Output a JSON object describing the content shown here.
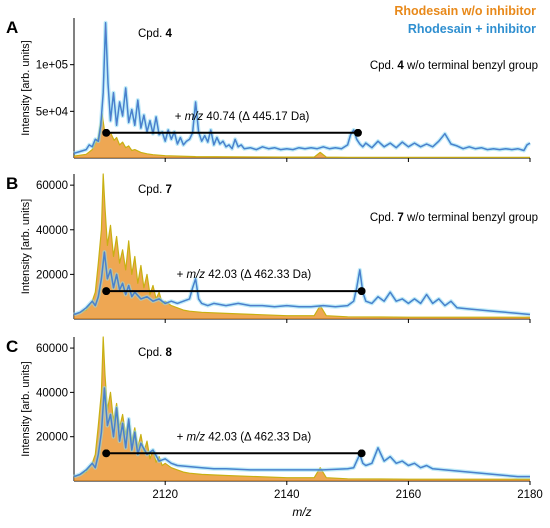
{
  "legend": [
    {
      "name": "Rhodesain w/o inhibitor",
      "color": "#e8891a"
    },
    {
      "name": "Rhodesain + inhibitor",
      "color": "#2f8fd0"
    }
  ],
  "axis": {
    "xlabel": "m/z",
    "ylabel": "Intensity [arb. units]",
    "xlim": [
      2105,
      2180
    ],
    "xticks": [
      2120,
      2140,
      2160,
      2180
    ]
  },
  "chart_data": [
    {
      "type": "line",
      "panel": "A",
      "compound_prefix": "Cpd.",
      "compound": "4",
      "note_prefix": "Cpd.",
      "note_compound": "4",
      "note_suffix": "w/o terminal benzyl group",
      "annotation_prefix": "+",
      "annotation_mz": "m/z",
      "annotation_value": "40.74 (Δ 445.17 Da)",
      "arrow_x": [
        2110.3,
        2151.7
      ],
      "arrow_y": 27000,
      "ylim": [
        0,
        150000
      ],
      "yticks": [
        50000,
        100000
      ],
      "ytick_labels": [
        "5e+04",
        "1e+05"
      ],
      "series": [
        {
          "name": "Rhodesain w/o inhibitor",
          "color": "#e8891a",
          "x": [
            2105,
            2107,
            2108,
            2109,
            2109.6,
            2110,
            2110.5,
            2111,
            2111.6,
            2112,
            2112.5,
            2113,
            2113.5,
            2114,
            2114.5,
            2115,
            2116,
            2117,
            2118,
            2120,
            2125,
            2140,
            2144.5,
            2145.5,
            2146.5,
            2150,
            2180
          ],
          "y": [
            2000,
            4000,
            9000,
            22000,
            48000,
            30000,
            24000,
            27000,
            19000,
            22000,
            14000,
            17000,
            11000,
            13000,
            8000,
            9000,
            6000,
            4500,
            3500,
            2500,
            1500,
            1000,
            1000,
            6000,
            1000,
            800,
            800
          ]
        },
        {
          "name": "Rhodesain + inhibitor",
          "color": "#2f8fd0",
          "x": [
            2105,
            2106,
            2107,
            2107.5,
            2108,
            2108.5,
            2109,
            2109.4,
            2109.8,
            2110.2,
            2110.6,
            2111,
            2111.5,
            2112,
            2112.5,
            2113,
            2113.5,
            2114,
            2114.5,
            2115,
            2115.5,
            2116,
            2116.5,
            2117,
            2117.5,
            2118,
            2118.5,
            2119,
            2119.5,
            2120,
            2120.5,
            2121,
            2121.5,
            2122,
            2122.5,
            2123,
            2123.5,
            2124,
            2124.5,
            2125,
            2125.5,
            2126,
            2126.5,
            2127,
            2127.5,
            2128,
            2128.5,
            2129,
            2129.5,
            2130,
            2130.5,
            2131,
            2131.5,
            2132,
            2132.5,
            2133,
            2134,
            2135,
            2136,
            2137,
            2138,
            2139,
            2140,
            2141,
            2142,
            2143,
            2144,
            2145,
            2146,
            2147,
            2148,
            2149,
            2150,
            2150.5,
            2151,
            2151.5,
            2152,
            2152.5,
            2153,
            2154,
            2155,
            2156,
            2157,
            2158,
            2159,
            2160,
            2161,
            2162,
            2163,
            2164,
            2165,
            2166,
            2167,
            2168,
            2169,
            2170,
            2171,
            2172,
            2173,
            2174,
            2175,
            2176,
            2177,
            2178,
            2179,
            2179.5,
            2180
          ],
          "y": [
            5000,
            7000,
            9000,
            14000,
            12000,
            20000,
            18000,
            35000,
            70000,
            145000,
            80000,
            40000,
            70000,
            35000,
            60000,
            45000,
            75000,
            38000,
            52000,
            35000,
            62000,
            32000,
            46000,
            28000,
            40000,
            26000,
            44000,
            25000,
            28000,
            18000,
            30000,
            20000,
            28000,
            15000,
            22000,
            14000,
            18000,
            20000,
            27000,
            60000,
            28000,
            18000,
            24000,
            17000,
            30000,
            14000,
            22000,
            15000,
            18000,
            12000,
            14000,
            10000,
            20000,
            12000,
            14000,
            10000,
            11000,
            9000,
            12000,
            10000,
            11000,
            9000,
            10000,
            9000,
            11000,
            10000,
            11000,
            10000,
            12000,
            10000,
            11000,
            10000,
            14000,
            25000,
            30000,
            20000,
            15000,
            12000,
            16000,
            11000,
            18000,
            12000,
            16000,
            11000,
            17000,
            12000,
            16000,
            12000,
            15000,
            12000,
            18000,
            26000,
            15000,
            13000,
            10000,
            12000,
            10000,
            11000,
            9000,
            10000,
            9000,
            10000,
            9000,
            10000,
            8000,
            14000,
            16000
          ]
        }
      ]
    },
    {
      "type": "line",
      "panel": "B",
      "compound_prefix": "Cpd.",
      "compound": "7",
      "note_prefix": "Cpd.",
      "note_compound": "7",
      "note_suffix": "w/o terminal benzyl group",
      "annotation_prefix": "+",
      "annotation_mz": "m/z",
      "annotation_value": "42.03 (Δ 462.33 Da)",
      "arrow_x": [
        2110.3,
        2152.3
      ],
      "arrow_y": 12500,
      "ylim": [
        0,
        65000
      ],
      "yticks": [
        20000,
        40000,
        60000
      ],
      "ytick_labels": [
        "20000",
        "40000",
        "60000"
      ],
      "series": [
        {
          "name": "Rhodesain w/o inhibitor",
          "color": "#e8891a",
          "x": [
            2105,
            2106,
            2107,
            2108,
            2108.5,
            2109,
            2109.5,
            2109.8,
            2110.1,
            2110.5,
            2111,
            2111.5,
            2112,
            2112.5,
            2113,
            2113.5,
            2114,
            2114.5,
            2115,
            2115.5,
            2116,
            2116.5,
            2117,
            2117.5,
            2118,
            2118.5,
            2119,
            2119.5,
            2120,
            2121,
            2122,
            2123,
            2124,
            2126,
            2130,
            2140,
            2144.5,
            2145.5,
            2146.5,
            2150,
            2160,
            2180
          ],
          "y": [
            2000,
            3000,
            4000,
            8000,
            12000,
            25000,
            40000,
            65000,
            50000,
            33000,
            42000,
            28000,
            37000,
            25000,
            31000,
            22000,
            35000,
            20000,
            28000,
            16000,
            24000,
            14000,
            20000,
            11000,
            15000,
            9000,
            12000,
            7000,
            8000,
            6000,
            5000,
            4000,
            3500,
            3000,
            2500,
            1500,
            1500,
            6000,
            1500,
            1000,
            800,
            800
          ]
        },
        {
          "name": "Rhodesain + inhibitor",
          "color": "#2f8fd0",
          "x": [
            2105,
            2106,
            2107,
            2108,
            2108.5,
            2109,
            2109.5,
            2110,
            2110.5,
            2111,
            2111.5,
            2112,
            2112.5,
            2113,
            2113.5,
            2114,
            2114.5,
            2115,
            2116,
            2117,
            2118,
            2119,
            2120,
            2121,
            2122,
            2123,
            2124,
            2124.5,
            2125,
            2125.5,
            2126,
            2127,
            2128,
            2130,
            2132,
            2134,
            2136,
            2138,
            2140,
            2142,
            2144,
            2146,
            2148,
            2150,
            2151,
            2151.5,
            2152,
            2152.5,
            2153,
            2154,
            2155,
            2156,
            2157,
            2158,
            2159,
            2160,
            2161,
            2162,
            2163,
            2164,
            2165,
            2166,
            2167,
            2168,
            2170,
            2172,
            2174,
            2176,
            2178,
            2180
          ],
          "y": [
            2000,
            3000,
            5000,
            8000,
            6000,
            10000,
            18000,
            30000,
            18000,
            22000,
            14000,
            20000,
            13000,
            16000,
            11000,
            15000,
            10000,
            12000,
            9000,
            10000,
            8000,
            9000,
            7000,
            8000,
            7000,
            8000,
            9000,
            14000,
            18000,
            9000,
            7000,
            6000,
            7000,
            6000,
            7000,
            6000,
            6000,
            5500,
            6000,
            5500,
            5500,
            6000,
            5500,
            6000,
            8000,
            14000,
            22000,
            12000,
            8000,
            7000,
            10000,
            8000,
            12000,
            8000,
            9000,
            7000,
            9000,
            7000,
            11000,
            7000,
            9000,
            6000,
            8000,
            5000,
            4500,
            4000,
            3500,
            3000,
            2500,
            2000
          ]
        }
      ]
    },
    {
      "type": "line",
      "panel": "C",
      "compound_prefix": "Cpd.",
      "compound": "8",
      "annotation_prefix": "+",
      "annotation_mz": "m/z",
      "annotation_value": "42.03 (Δ 462.33 Da)",
      "arrow_x": [
        2110.3,
        2152.3
      ],
      "arrow_y": 12500,
      "ylim": [
        0,
        65000
      ],
      "yticks": [
        20000,
        40000,
        60000
      ],
      "ytick_labels": [
        "20000",
        "40000",
        "60000"
      ],
      "series": [
        {
          "name": "Rhodesain w/o inhibitor",
          "color": "#e8891a",
          "x": [
            2105,
            2106,
            2107,
            2108,
            2108.5,
            2109,
            2109.5,
            2109.8,
            2110.1,
            2110.5,
            2111,
            2111.5,
            2112,
            2112.5,
            2113,
            2113.5,
            2114,
            2114.5,
            2115,
            2115.5,
            2116,
            2116.5,
            2117,
            2117.5,
            2118,
            2118.5,
            2119,
            2119.5,
            2120,
            2121,
            2122,
            2123,
            2124,
            2126,
            2130,
            2140,
            2144.5,
            2145.5,
            2146.5,
            2150,
            2160,
            2180
          ],
          "y": [
            2000,
            3000,
            4000,
            8000,
            12000,
            25000,
            40000,
            65000,
            48000,
            32000,
            40000,
            27000,
            35000,
            24000,
            30000,
            21000,
            28000,
            18000,
            24000,
            15000,
            21000,
            13000,
            18000,
            10000,
            14000,
            8500,
            11000,
            7000,
            8000,
            6000,
            5000,
            4000,
            3500,
            3000,
            2500,
            1500,
            1500,
            6000,
            1500,
            1000,
            800,
            800
          ]
        },
        {
          "name": "Rhodesain + inhibitor",
          "color": "#2f8fd0",
          "x": [
            2105,
            2106,
            2107,
            2108,
            2108.5,
            2109,
            2109.5,
            2110,
            2110.5,
            2111,
            2111.5,
            2112,
            2112.5,
            2113,
            2113.5,
            2114,
            2114.5,
            2115,
            2115.5,
            2116,
            2117,
            2118,
            2119,
            2120,
            2121,
            2122,
            2124,
            2126,
            2128,
            2130,
            2134,
            2138,
            2142,
            2146,
            2150,
            2151,
            2151.5,
            2152,
            2152.5,
            2153,
            2154,
            2155,
            2156,
            2157,
            2158,
            2159,
            2160,
            2161,
            2162,
            2163,
            2164,
            2166,
            2168,
            2170,
            2172,
            2174,
            2176,
            2178,
            2180
          ],
          "y": [
            2000,
            3000,
            5000,
            8000,
            6000,
            12000,
            22000,
            42000,
            25000,
            30000,
            20000,
            33000,
            18000,
            26000,
            15000,
            28000,
            14000,
            22000,
            12000,
            17000,
            12000,
            14000,
            9000,
            10000,
            8000,
            7000,
            6500,
            6000,
            5500,
            5500,
            5000,
            5000,
            5000,
            5000,
            5500,
            6000,
            9000,
            12000,
            8000,
            7000,
            8000,
            15000,
            9000,
            11000,
            8000,
            9000,
            7000,
            8000,
            6000,
            7000,
            5500,
            5000,
            4500,
            4000,
            3500,
            3000,
            2500,
            2000,
            2000
          ]
        }
      ]
    }
  ]
}
